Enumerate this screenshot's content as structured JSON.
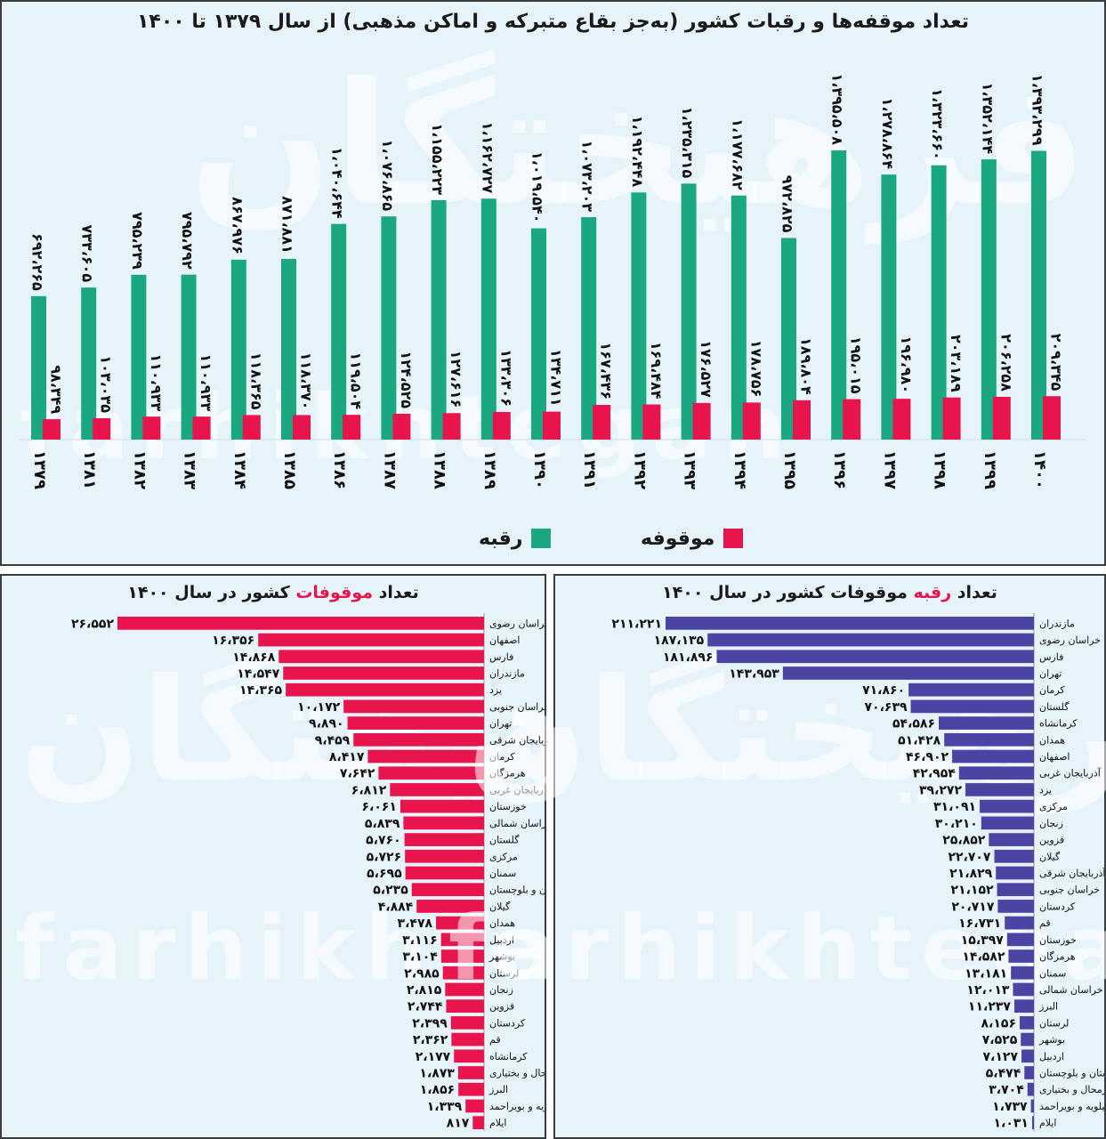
{
  "top_chart": {
    "title": "تعداد موقفه‌ها و رقبات کشور (به‌جز بقاع متبرکه و اماکن مذهبی) از سال ۱۳۷۹ تا ۱۴۰۰",
    "legend": {
      "raqabe": "رقبه",
      "mowqufe": "موقوفه"
    },
    "colors": {
      "raqabe": "#1aa883",
      "mowqufe": "#e8154d"
    }
  },
  "left_chart": {
    "title_prefix": "تعداد ",
    "title_highlight": "موقوفات",
    "title_suffix": " کشور در سال ۱۴۰۰",
    "color": "#e8154d"
  },
  "right_chart": {
    "title_prefix": "تعداد ",
    "title_highlight": "رقبه",
    "title_suffix": " موقوفات کشور در سال ۱۴۰۰",
    "color": "#4b44a3"
  },
  "watermark": {
    "fa": "فرهیختگان",
    "en": "farhikhtegan"
  },
  "chart_data": [
    {
      "type": "bar",
      "title": "تعداد موقفه‌ها و رقبات کشور (به‌جز بقاع متبرکه و اماکن مذهبی) از سال ۱۳۷۹ تا ۱۴۰۰",
      "categories": [
        "۱۳۷۹",
        "۱۳۸۱",
        "۱۳۸۲",
        "۱۳۸۳",
        "۱۳۸۴",
        "۱۳۸۵",
        "۱۳۸۶",
        "۱۳۸۷",
        "۱۳۸۸",
        "۱۳۸۹",
        "۱۳۹۰",
        "۱۳۹۱",
        "۱۳۹۲",
        "۱۳۹۳",
        "۱۳۹۴",
        "۱۳۹۵",
        "۱۳۹۶",
        "۱۳۹۷",
        "۱۳۹۸",
        "۱۳۹۹",
        "۱۴۰۰"
      ],
      "series": [
        {
          "name": "رقبه",
          "values": [
            692265,
            733605,
            795239,
            795792,
            867976,
            871881,
            1040644,
            1076865,
            1155223,
            1162727,
            1019540,
            1073203,
            1192448,
            1235315,
            1177682,
            972825,
            1395508,
            1278864,
            1323660,
            1352144,
            1393299
          ],
          "labels": [
            "۶۹۲،۲۶۵",
            "۷۳۳،۶۰۵",
            "۷۹۵،۲۳۹",
            "۷۹۵،۷۹۲",
            "۸۶۷،۹۷۶",
            "۸۷۱،۸۸۱",
            "۱،۰۴۰،۶۴۴",
            "۱،۰۷۶،۸۶۵",
            "۱،۱۵۵،۲۲۳",
            "۱،۱۶۲،۷۲۷",
            "۱،۰۱۹،۵۴۰",
            "۱،۰۷۳،۲۰۳",
            "۱،۱۹۲،۴۴۸",
            "۱،۲۳۵،۳۱۵",
            "۱،۱۷۷،۶۸۲",
            "۹۷۲،۸۲۵",
            "۱،۳۹۵،۵۰۸",
            "۱،۲۷۸،۸۶۴",
            "۱،۳۲۳،۶۶۰",
            "۱،۳۵۲،۱۴۴",
            "۱،۳۹۳،۲۹۹"
          ]
        },
        {
          "name": "موقوفه",
          "values": [
            98349,
            103035,
            110933,
            110933,
            118365,
            118370,
            119504,
            124525,
            127616,
            133306,
            134711,
            167436,
            169484,
            176527,
            178756,
            189804,
            195015,
            196980,
            203189,
            206258,
            209345
          ],
          "labels": [
            "۹۸،۳۴۹",
            "۱۰۳،۰۳۵",
            "۱۱۰،۹۳۳",
            "۱۱۰،۹۳۳",
            "۱۱۸،۳۶۵",
            "۱۱۸،۳۷۰",
            "۱۱۹،۵۰۴",
            "۱۲۴،۵۲۵",
            "۱۲۷،۶۱۶",
            "۱۳۳،۳۰۶",
            "۱۳۴،۷۱۱",
            "۱۶۷،۴۳۶",
            "۱۶۹،۴۸۴",
            "۱۷۶،۵۲۷",
            "۱۷۸،۷۵۶",
            "۱۸۹،۸۰۴",
            "۱۹۵،۰۱۵",
            "۱۹۶،۹۸۰",
            "۲۰۳،۱۸۹",
            "۲۰۶،۲۵۸",
            "۲۰۹،۳۴۵"
          ]
        }
      ]
    },
    {
      "type": "bar",
      "orientation": "horizontal",
      "title": "تعداد موقوفات کشور در سال ۱۴۰۰",
      "categories": [
        "خراسان رضوی",
        "اصفهان",
        "فارس",
        "مازندران",
        "یزد",
        "خراسان جنوبی",
        "تهران",
        "آذربایجان شرقی",
        "کرمان",
        "هرمزگان",
        "آذربایجان غربی",
        "خوزستان",
        "خراسان شمالی",
        "گلستان",
        "مرکزی",
        "سمنان",
        "سیستان و بلوچستان",
        "گیلان",
        "همدان",
        "اردبیل",
        "بوشهر",
        "لرستان",
        "زنجان",
        "قزوین",
        "کردستان",
        "قم",
        "کرمانشاه",
        "چهارمحال و بختیاری",
        "البرز",
        "کهگیلویه و بویراحمد",
        "ایلام"
      ],
      "values": [
        26552,
        16356,
        14868,
        14547,
        14365,
        10172,
        9890,
        9459,
        8417,
        7642,
        6812,
        6061,
        5839,
        5760,
        5726,
        5695,
        5235,
        4884,
        3478,
        3116,
        3104,
        2985,
        2815,
        2744,
        2399,
        2362,
        2177,
        1873,
        1856,
        1339,
        817
      ],
      "labels": [
        "۲۶،۵۵۲",
        "۱۶،۳۵۶",
        "۱۴،۸۶۸",
        "۱۴،۵۴۷",
        "۱۴،۳۶۵",
        "۱۰،۱۷۲",
        "۹،۸۹۰",
        "۹،۴۵۹",
        "۸،۴۱۷",
        "۷،۶۴۲",
        "۶،۸۱۲",
        "۶،۰۶۱",
        "۵،۸۳۹",
        "۵،۷۶۰",
        "۵،۷۲۶",
        "۵،۶۹۵",
        "۵،۲۳۵",
        "۴،۸۸۴",
        "۳،۴۷۸",
        "۳،۱۱۶",
        "۳،۱۰۴",
        "۲،۹۸۵",
        "۲،۸۱۵",
        "۲،۷۴۴",
        "۲،۳۹۹",
        "۲،۳۶۲",
        "۲،۱۷۷",
        "۱،۸۷۳",
        "۱،۸۵۶",
        "۱،۳۳۹",
        "۸۱۷"
      ]
    },
    {
      "type": "bar",
      "orientation": "horizontal",
      "title": "تعداد رقبه موقوفات کشور در سال ۱۴۰۰",
      "categories": [
        "مازندران",
        "خراسان رضوی",
        "فارس",
        "تهران",
        "کرمان",
        "گلستان",
        "کرمانشاه",
        "همدان",
        "اصفهان",
        "آذربایجان غربی",
        "یزد",
        "مرکزی",
        "زنجان",
        "قزوین",
        "گیلان",
        "آذربایجان شرقی",
        "خراسان جنوبی",
        "کردستان",
        "قم",
        "خوزستان",
        "هرمزگان",
        "سمنان",
        "خراسان شمالی",
        "البرز",
        "لرستان",
        "بوشهر",
        "اردبیل",
        "سیستان و بلوچستان",
        "چهارمحال و بختیاری",
        "کهگیلویه و بویراحمد",
        "ایلام"
      ],
      "values": [
        211221,
        187135,
        181896,
        143953,
        71860,
        70639,
        54586,
        51428,
        46902,
        42954,
        39272,
        31091,
        30210,
        25852,
        22707,
        21829,
        21152,
        20717,
        16731,
        15397,
        14582,
        13181,
        12013,
        11237,
        8156,
        7525,
        7127,
        5474,
        3704,
        1737,
        1031
      ],
      "labels": [
        "۲۱۱،۲۲۱",
        "۱۸۷،۱۳۵",
        "۱۸۱،۸۹۶",
        "۱۴۳،۹۵۳",
        "۷۱،۸۶۰",
        "۷۰،۶۳۹",
        "۵۴،۵۸۶",
        "۵۱،۴۲۸",
        "۴۶،۹۰۲",
        "۴۲،۹۵۴",
        "۳۹،۲۷۲",
        "۳۱،۰۹۱",
        "۳۰،۲۱۰",
        "۲۵،۸۵۲",
        "۲۲،۷۰۷",
        "۲۱،۸۲۹",
        "۲۱،۱۵۲",
        "۲۰،۷۱۷",
        "۱۶،۷۳۱",
        "۱۵،۳۹۷",
        "۱۴،۵۸۲",
        "۱۳،۱۸۱",
        "۱۲،۰۱۳",
        "۱۱،۲۳۷",
        "۸،۱۵۶",
        "۷،۵۲۵",
        "۷،۱۲۷",
        "۵،۴۷۴",
        "۳،۷۰۴",
        "۱،۷۳۷",
        "۱،۰۳۱"
      ]
    }
  ]
}
